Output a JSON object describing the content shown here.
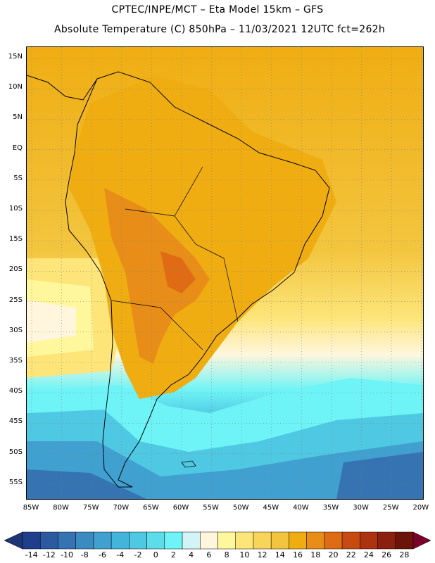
{
  "header": {
    "title_line1": "CPTEC/INPE/MCT –  Eta Model 15km – GFS",
    "title_line2": "Absolute Temperature (C) 850hPa – 11/03/2021 12UTC fct=262h"
  },
  "map": {
    "lat_labels": [
      "15N",
      "10N",
      "5N",
      "EQ",
      "5S",
      "10S",
      "15S",
      "20S",
      "25S",
      "30S",
      "35S",
      "40S",
      "45S",
      "50S",
      "55S"
    ],
    "lon_labels": [
      "85W",
      "80W",
      "75W",
      "70W",
      "65W",
      "60W",
      "55W",
      "50W",
      "45W",
      "40W",
      "35W",
      "30W",
      "25W",
      "20W"
    ],
    "continent": "South America",
    "field": "temperature at 850hPa"
  },
  "colorbar": {
    "labels": [
      "-14",
      "-12",
      "-10",
      "-8",
      "-6",
      "-4",
      "-2",
      "0",
      "2",
      "4",
      "6",
      "8",
      "10",
      "12",
      "14",
      "16",
      "18",
      "20",
      "22",
      "24",
      "26",
      "28"
    ],
    "colors": [
      "#1f3f8c",
      "#2c5aa0",
      "#3573b3",
      "#3c8ac2",
      "#40a0cf",
      "#44b5da",
      "#4fc9e3",
      "#5ddcea",
      "#6ef4f6",
      "#d2f4f6",
      "#fff6dd",
      "#fff79c",
      "#fde57a",
      "#f8d45a",
      "#f3c53f",
      "#efad12",
      "#e88d17",
      "#df6b14",
      "#c74a11",
      "#ad3310",
      "#8c200e",
      "#6c1408"
    ],
    "under_color": "#1e3576",
    "over_color": "#7a0029"
  }
}
